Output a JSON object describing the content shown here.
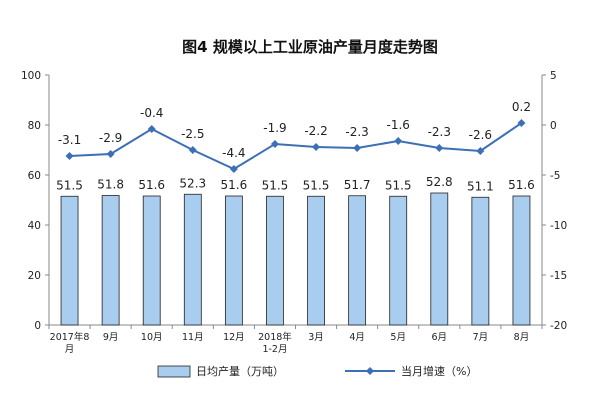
{
  "chart_data": {
    "type": "bar+line",
    "title": "图4  规模以上工业原油产量月度走势图",
    "categories": [
      [
        "2017年8",
        "月"
      ],
      [
        "9月"
      ],
      [
        "10月"
      ],
      [
        "11月"
      ],
      [
        "12月"
      ],
      [
        "2018年",
        "1-2月"
      ],
      [
        "3月"
      ],
      [
        "4月"
      ],
      [
        "5月"
      ],
      [
        "6月"
      ],
      [
        "7月"
      ],
      [
        "8月"
      ]
    ],
    "series": [
      {
        "name": "日均产量（万吨）",
        "type": "bar",
        "axis": "left",
        "values": [
          51.5,
          51.8,
          51.6,
          52.3,
          51.6,
          51.5,
          51.5,
          51.7,
          51.5,
          52.8,
          51.1,
          51.6
        ],
        "labels": [
          "51.5",
          "51.8",
          "51.6",
          "52.3",
          "51.6",
          "51.5",
          "51.5",
          "51.7",
          "51.5",
          "52.8",
          "51.1",
          "51.6"
        ],
        "color": "#a9cdee"
      },
      {
        "name": "当月增速（%）",
        "type": "line",
        "axis": "right",
        "values": [
          -3.1,
          -2.9,
          -0.4,
          -2.5,
          -4.4,
          -1.9,
          -2.2,
          -2.3,
          -1.6,
          -2.3,
          -2.6,
          0.2
        ],
        "labels": [
          "-3.1",
          "-2.9",
          "-0.4",
          "-2.5",
          "-4.4",
          "-1.9",
          "-2.2",
          "-2.3",
          "-1.6",
          "-2.3",
          "-2.6",
          "0.2"
        ],
        "color": "#3d6fb6"
      }
    ],
    "y_left": {
      "min": 0,
      "max": 100,
      "ticks": [
        0,
        20,
        40,
        60,
        80,
        100
      ]
    },
    "y_right": {
      "min": -20,
      "max": 5,
      "ticks": [
        -20,
        -15,
        -10,
        -5,
        0,
        5
      ]
    },
    "grid": false,
    "legend_position": "bottom"
  }
}
